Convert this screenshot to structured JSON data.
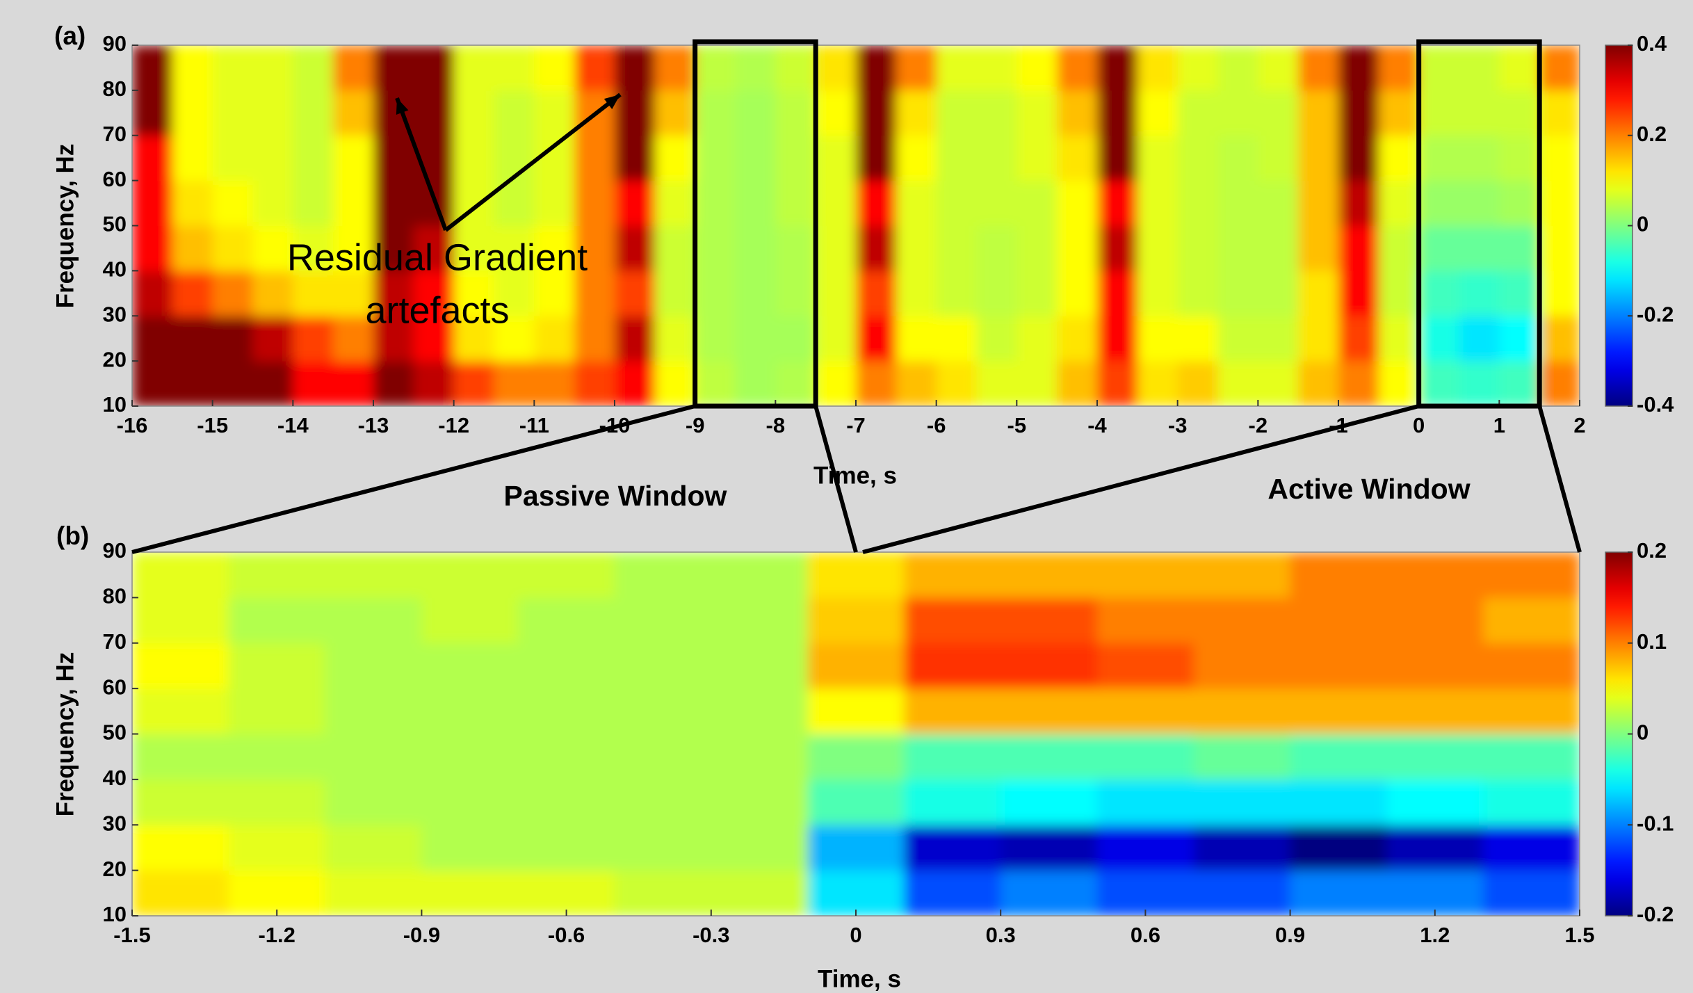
{
  "chart_data": [
    {
      "type": "heatmap",
      "title": "(a)",
      "x_label": "Time, s",
      "y_label": "Frequency, Hz",
      "colormap": "jet",
      "xlim": [
        -16,
        2
      ],
      "ylim": [
        10,
        90
      ],
      "xticks": [
        -16,
        -15,
        -14,
        -13,
        -12,
        -11,
        -10,
        -9,
        -8,
        -7,
        -6,
        -5,
        -4,
        -3,
        -2,
        -1,
        0,
        1,
        2
      ],
      "yticks": [
        10,
        20,
        30,
        40,
        50,
        60,
        70,
        80,
        90
      ],
      "clim": [
        -0.4,
        0.4
      ],
      "cticks": [
        0.4,
        0.2,
        0,
        -0.2,
        -0.4
      ],
      "x": [
        -15.75,
        -15.25,
        -14.75,
        -14.25,
        -13.75,
        -13.25,
        -12.75,
        -12.25,
        -11.75,
        -11.25,
        -10.75,
        -10.25,
        -9.75,
        -9.25,
        -8.75,
        -8.25,
        -7.75,
        -7.25,
        -6.75,
        -6.25,
        -5.75,
        -5.25,
        -4.75,
        -4.25,
        -3.75,
        -3.25,
        -2.75,
        -2.25,
        -1.75,
        -1.25,
        -0.75,
        -0.25,
        0.25,
        0.75,
        1.25,
        1.75
      ],
      "y": [
        15,
        25,
        35,
        45,
        55,
        65,
        75,
        85
      ],
      "z": [
        [
          0.4,
          0.4,
          0.35,
          0.3,
          0.3,
          0.3,
          0.4,
          0.4
        ],
        [
          0.4,
          0.4,
          0.25,
          0.15,
          0.12,
          0.1,
          0.1,
          0.1
        ],
        [
          0.4,
          0.4,
          0.2,
          0.12,
          0.1,
          0.08,
          0.08,
          0.08
        ],
        [
          0.4,
          0.35,
          0.15,
          0.1,
          0.08,
          0.08,
          0.08,
          0.08
        ],
        [
          0.3,
          0.25,
          0.12,
          0.08,
          0.06,
          0.06,
          0.06,
          0.06
        ],
        [
          0.3,
          0.2,
          0.12,
          0.1,
          0.1,
          0.1,
          0.15,
          0.2
        ],
        [
          0.4,
          0.35,
          0.35,
          0.4,
          0.4,
          0.4,
          0.4,
          0.4
        ],
        [
          0.35,
          0.3,
          0.3,
          0.35,
          0.4,
          0.4,
          0.4,
          0.4
        ],
        [
          0.25,
          0.12,
          0.1,
          0.08,
          0.08,
          0.08,
          0.08,
          0.08
        ],
        [
          0.2,
          0.1,
          0.08,
          0.08,
          0.06,
          0.06,
          0.06,
          0.08
        ],
        [
          0.2,
          0.12,
          0.1,
          0.1,
          0.08,
          0.08,
          0.08,
          0.1
        ],
        [
          0.25,
          0.2,
          0.2,
          0.2,
          0.2,
          0.2,
          0.2,
          0.25
        ],
        [
          0.3,
          0.35,
          0.25,
          0.35,
          0.3,
          0.4,
          0.4,
          0.4
        ],
        [
          0.1,
          0.08,
          0.06,
          0.06,
          0.08,
          0.1,
          0.15,
          0.2
        ],
        [
          0.05,
          0.04,
          0.04,
          0.04,
          0.04,
          0.04,
          0.04,
          0.05
        ],
        [
          0.03,
          0.03,
          0.03,
          0.03,
          0.03,
          0.03,
          0.03,
          0.04
        ],
        [
          0.04,
          0.03,
          0.04,
          0.04,
          0.05,
          0.05,
          0.05,
          0.06
        ],
        [
          0.1,
          0.08,
          0.08,
          0.08,
          0.08,
          0.08,
          0.1,
          0.12
        ],
        [
          0.2,
          0.3,
          0.25,
          0.35,
          0.3,
          0.4,
          0.4,
          0.4
        ],
        [
          0.15,
          0.1,
          0.08,
          0.08,
          0.08,
          0.1,
          0.12,
          0.2
        ],
        [
          0.12,
          0.1,
          0.06,
          0.06,
          0.06,
          0.06,
          0.06,
          0.08
        ],
        [
          0.08,
          0.06,
          0.05,
          0.05,
          0.06,
          0.06,
          0.06,
          0.08
        ],
        [
          0.08,
          0.08,
          0.06,
          0.06,
          0.06,
          0.08,
          0.08,
          0.1
        ],
        [
          0.15,
          0.12,
          0.1,
          0.1,
          0.1,
          0.12,
          0.15,
          0.2
        ],
        [
          0.25,
          0.3,
          0.3,
          0.35,
          0.3,
          0.4,
          0.4,
          0.4
        ],
        [
          0.12,
          0.1,
          0.08,
          0.08,
          0.08,
          0.08,
          0.1,
          0.12
        ],
        [
          0.14,
          0.1,
          0.06,
          0.06,
          0.06,
          0.06,
          0.06,
          0.08
        ],
        [
          0.08,
          0.06,
          0.05,
          0.05,
          0.05,
          0.05,
          0.06,
          0.06
        ],
        [
          0.08,
          0.06,
          0.05,
          0.05,
          0.05,
          0.06,
          0.06,
          0.08
        ],
        [
          0.15,
          0.12,
          0.12,
          0.15,
          0.15,
          0.15,
          0.15,
          0.2
        ],
        [
          0.2,
          0.25,
          0.3,
          0.3,
          0.35,
          0.4,
          0.4,
          0.4
        ],
        [
          0.1,
          0.08,
          0.06,
          0.06,
          0.08,
          0.1,
          0.15,
          0.2
        ],
        [
          -0.05,
          -0.08,
          -0.05,
          -0.02,
          0.02,
          0.04,
          0.06,
          0.06
        ],
        [
          -0.06,
          -0.12,
          -0.06,
          -0.02,
          0.02,
          0.04,
          0.06,
          0.06
        ],
        [
          -0.05,
          -0.1,
          -0.05,
          -0.02,
          0.03,
          0.05,
          0.06,
          0.08
        ],
        [
          0.2,
          0.15,
          0.1,
          0.1,
          0.1,
          0.1,
          0.12,
          0.2
        ]
      ],
      "windows": [
        {
          "name": "Passive Window",
          "xlim": [
            -9,
            -7.5
          ]
        },
        {
          "name": "Active Window",
          "xlim": [
            0,
            1.5
          ]
        }
      ],
      "window_color": "#000000",
      "annotation": [
        "Residual Gradient",
        "artefacts"
      ]
    },
    {
      "type": "heatmap",
      "title": "(b)",
      "x_label": "Time, s",
      "y_label": "Frequency, Hz",
      "colormap": "jet",
      "xlim": [
        -1.5,
        1.5
      ],
      "ylim": [
        10,
        90
      ],
      "xticks": [
        -1.5,
        -1.2,
        -0.9,
        -0.6,
        -0.3,
        0,
        0.3,
        0.6,
        0.9,
        1.2,
        1.5
      ],
      "yticks": [
        10,
        20,
        30,
        40,
        50,
        60,
        70,
        80,
        90
      ],
      "clim": [
        -0.2,
        0.2
      ],
      "cticks": [
        0.2,
        0.1,
        0,
        -0.1,
        -0.2
      ],
      "x": [
        -1.4,
        -1.2,
        -1.0,
        -0.8,
        -0.6,
        -0.4,
        -0.2,
        0,
        0.2,
        0.4,
        0.6,
        0.8,
        1.0,
        1.2,
        1.4
      ],
      "y": [
        15,
        25,
        35,
        45,
        55,
        65,
        75,
        85
      ],
      "z": [
        [
          0.06,
          0.05,
          0.03,
          0.02,
          0.04,
          0.05,
          0.04,
          0.04
        ],
        [
          0.05,
          0.04,
          0.03,
          0.02,
          0.03,
          0.03,
          0.02,
          0.03
        ],
        [
          0.04,
          0.03,
          0.02,
          0.02,
          0.02,
          0.02,
          0.02,
          0.03
        ],
        [
          0.04,
          0.02,
          0.02,
          0.02,
          0.02,
          0.02,
          0.03,
          0.03
        ],
        [
          0.04,
          0.02,
          0.02,
          0.02,
          0.02,
          0.02,
          0.02,
          0.03
        ],
        [
          0.03,
          0.02,
          0.02,
          0.02,
          0.02,
          0.02,
          0.02,
          0.02
        ],
        [
          0.03,
          0.02,
          0.02,
          0.02,
          0.02,
          0.02,
          0.02,
          0.02
        ],
        [
          -0.06,
          -0.08,
          -0.02,
          0,
          0.05,
          0.08,
          0.07,
          0.06
        ],
        [
          -0.12,
          -0.17,
          -0.04,
          -0.02,
          0.08,
          0.13,
          0.12,
          0.08
        ],
        [
          -0.1,
          -0.18,
          -0.05,
          -0.02,
          0.08,
          0.13,
          0.12,
          0.08
        ],
        [
          -0.12,
          -0.16,
          -0.06,
          -0.02,
          0.08,
          0.12,
          0.1,
          0.08
        ],
        [
          -0.12,
          -0.18,
          -0.06,
          -0.01,
          0.08,
          0.1,
          0.1,
          0.08
        ],
        [
          -0.1,
          -0.2,
          -0.06,
          -0.02,
          0.08,
          0.1,
          0.1,
          0.1
        ],
        [
          -0.1,
          -0.18,
          -0.05,
          -0.02,
          0.08,
          0.1,
          0.1,
          0.1
        ],
        [
          -0.12,
          -0.16,
          -0.04,
          -0.02,
          0.08,
          0.1,
          0.08,
          0.1
        ]
      ]
    }
  ]
}
